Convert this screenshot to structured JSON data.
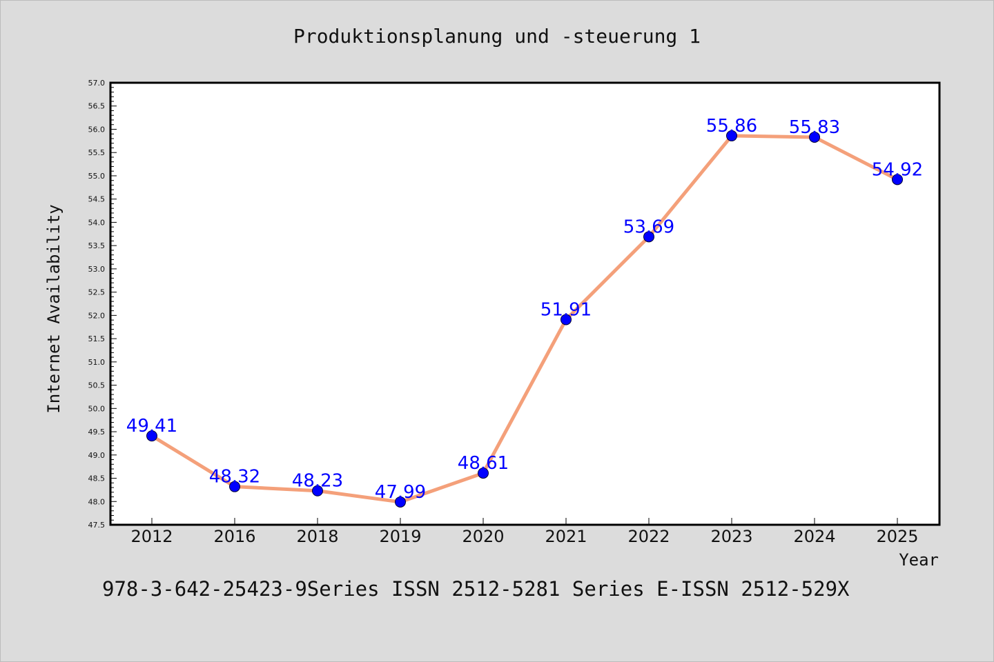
{
  "chart_data": {
    "type": "line",
    "title": "Produktionsplanung und -steuerung 1",
    "xlabel": "Year",
    "ylabel": "Internet Availability",
    "categories": [
      "2012",
      "2016",
      "2018",
      "2019",
      "2020",
      "2021",
      "2022",
      "2023",
      "2024",
      "2025"
    ],
    "series": [
      {
        "values": [
          49.41,
          48.32,
          48.23,
          47.99,
          48.61,
          51.91,
          53.69,
          55.86,
          55.83,
          54.92
        ],
        "data_labels": [
          "49.41",
          "48.32",
          "48.23",
          "47.99",
          "48.61",
          "51.91",
          "53.69",
          "55.86",
          "55.83",
          "54.92"
        ]
      }
    ],
    "ylim": [
      47.5,
      57.0
    ],
    "yticks": [
      "47.5",
      "48.0",
      "48.5",
      "49.0",
      "49.5",
      "50.0",
      "50.5",
      "51.0",
      "51.5",
      "52.0",
      "52.5",
      "53.0",
      "53.5",
      "54.0",
      "54.5",
      "55.0",
      "55.5",
      "56.0",
      "56.5",
      "57.0"
    ],
    "grid": false,
    "legend": "none",
    "colors": {
      "line": "#f4a07a",
      "marker": "#0000ff",
      "label": "#0000ff",
      "background": "#dcdcdc",
      "plot_background": "#ffffff"
    }
  },
  "footer": {
    "text": "978-3-642-25423-9Series ISSN 2512-5281 Series E-ISSN 2512-529X"
  }
}
